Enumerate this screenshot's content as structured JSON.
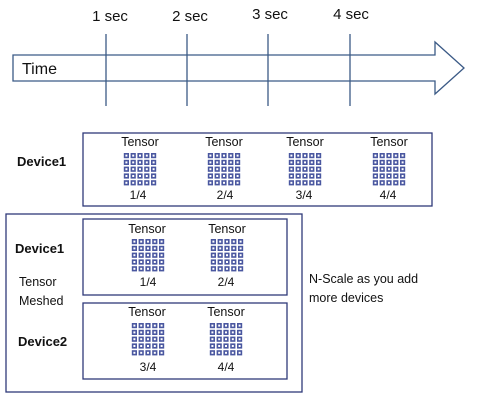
{
  "colors": {
    "frame": "#2f3a7a",
    "arrow": "#3b5a86",
    "tick": "#3b5a86",
    "grid_cell": "#4a57a0"
  },
  "timeline": {
    "label": "Time",
    "ticks": [
      "1 sec",
      "2 sec",
      "3 sec",
      "4 sec"
    ]
  },
  "single_device": {
    "device_label": "Device1",
    "tensors": [
      {
        "label": "Tensor",
        "fraction": "1/4"
      },
      {
        "label": "Tensor",
        "fraction": "2/4"
      },
      {
        "label": "Tensor",
        "fraction": "3/4"
      },
      {
        "label": "Tensor",
        "fraction": "4/4"
      }
    ]
  },
  "meshed": {
    "label_line1": "Tensor",
    "label_line2": "Meshed",
    "devices": [
      {
        "device_label": "Device1",
        "tensors": [
          {
            "label": "Tensor",
            "fraction": "1/4"
          },
          {
            "label": "Tensor",
            "fraction": "2/4"
          }
        ]
      },
      {
        "device_label": "Device2",
        "tensors": [
          {
            "label": "Tensor",
            "fraction": "3/4"
          },
          {
            "label": "Tensor",
            "fraction": "4/4"
          }
        ]
      }
    ]
  },
  "note": {
    "line1": "N-Scale as you add",
    "line2": "more devices"
  }
}
